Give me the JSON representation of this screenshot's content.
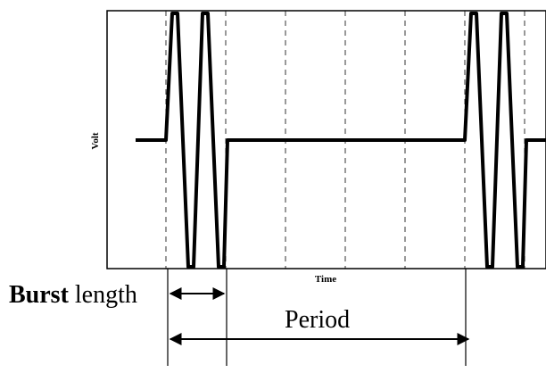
{
  "diagram": {
    "y_axis_label": "Volt",
    "x_axis_label": "Time",
    "burst_label_bold": "Burst",
    "burst_label_rest": " length",
    "period_label": "Period"
  }
}
